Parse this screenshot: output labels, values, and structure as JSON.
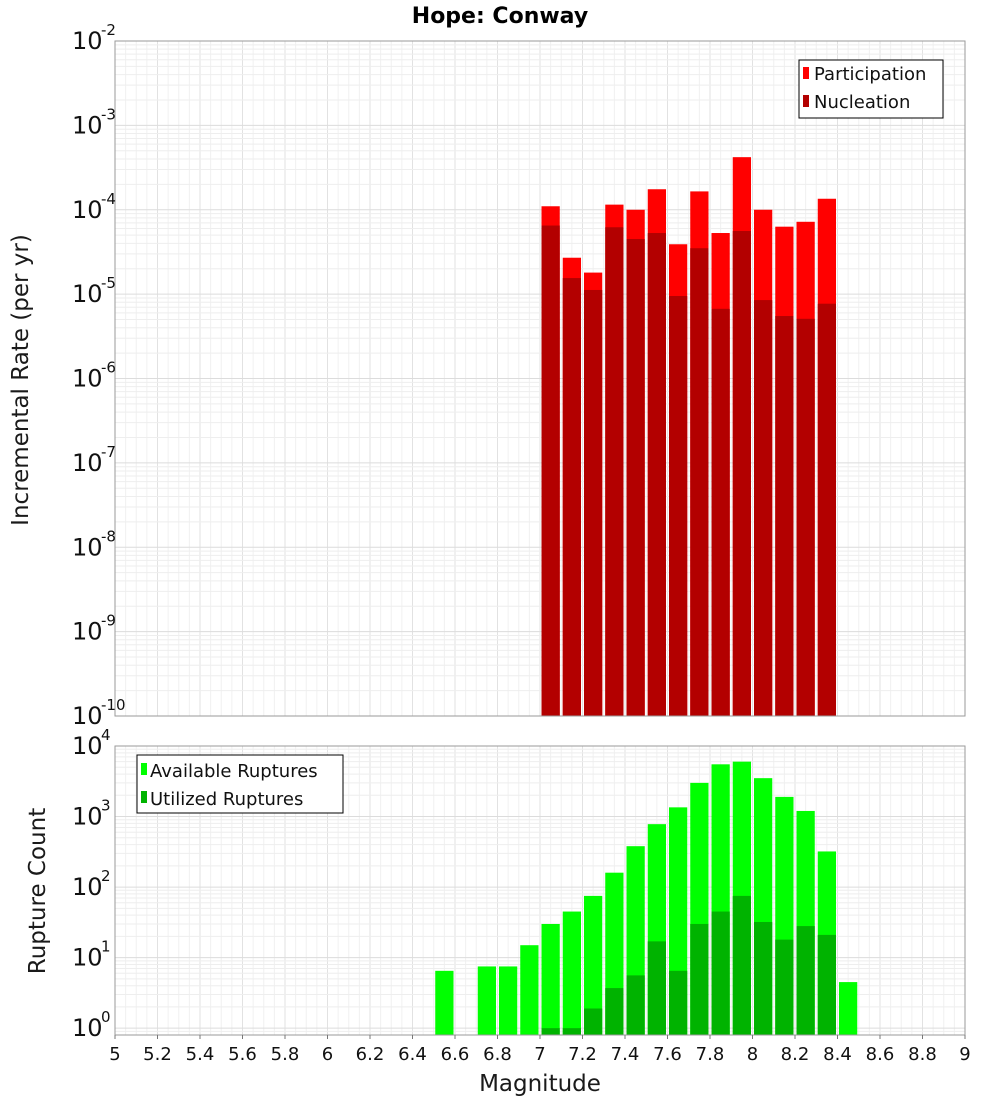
{
  "chart_data": [
    {
      "type": "bar",
      "title": "Hope: Conway",
      "xlabel": "",
      "ylabel": "Incremental Rate (per yr)",
      "yscale": "log",
      "ylim": [
        1e-10,
        0.01
      ],
      "xlim": [
        5,
        9
      ],
      "bin_width": 0.1,
      "grid": true,
      "legend_position": "top-right",
      "y_ticks": [
        {
          "base": "10",
          "exp": "-10"
        },
        {
          "base": "10",
          "exp": "-9"
        },
        {
          "base": "10",
          "exp": "-8"
        },
        {
          "base": "10",
          "exp": "-7"
        },
        {
          "base": "10",
          "exp": "-6"
        },
        {
          "base": "10",
          "exp": "-5"
        },
        {
          "base": "10",
          "exp": "-4"
        },
        {
          "base": "10",
          "exp": "-3"
        },
        {
          "base": "10",
          "exp": "-2"
        }
      ],
      "x": [
        7.05,
        7.15,
        7.25,
        7.35,
        7.45,
        7.55,
        7.65,
        7.75,
        7.85,
        7.95,
        8.05,
        8.15,
        8.25,
        8.35
      ],
      "series": [
        {
          "name": "Participation",
          "color": "#ff0000",
          "values": [
            0.00011,
            2.7e-05,
            1.8e-05,
            0.000115,
            0.0001,
            0.000175,
            3.9e-05,
            0.000165,
            5.3e-05,
            0.00042,
            0.0001,
            6.3e-05,
            7.2e-05,
            0.000135
          ]
        },
        {
          "name": "Nucleation",
          "color": "#b30000",
          "values": [
            6.5e-05,
            1.55e-05,
            1.12e-05,
            6.2e-05,
            4.5e-05,
            5.3e-05,
            9.5e-06,
            3.5e-05,
            6.7e-06,
            5.6e-05,
            8.5e-06,
            5.5e-06,
            5.1e-06,
            7.7e-06
          ]
        }
      ]
    },
    {
      "type": "bar",
      "title": "",
      "xlabel": "Magnitude",
      "ylabel": "Rupture Count",
      "yscale": "log",
      "ylim": [
        0.8,
        10000
      ],
      "xlim": [
        5,
        9
      ],
      "bin_width": 0.1,
      "grid": true,
      "legend_position": "top-left",
      "x_ticks": [
        "5",
        "5.2",
        "5.4",
        "5.6",
        "5.8",
        "6",
        "6.2",
        "6.4",
        "6.6",
        "6.8",
        "7",
        "7.2",
        "7.4",
        "7.6",
        "7.8",
        "8",
        "8.2",
        "8.4",
        "8.6",
        "8.8",
        "9"
      ],
      "y_ticks": [
        {
          "base": "10",
          "exp": "0"
        },
        {
          "base": "10",
          "exp": "1"
        },
        {
          "base": "10",
          "exp": "2"
        },
        {
          "base": "10",
          "exp": "3"
        },
        {
          "base": "10",
          "exp": "4"
        }
      ],
      "x": [
        6.55,
        6.75,
        6.85,
        6.95,
        7.05,
        7.15,
        7.25,
        7.35,
        7.45,
        7.55,
        7.65,
        7.75,
        7.85,
        7.95,
        8.05,
        8.15,
        8.25,
        8.35,
        8.45
      ],
      "series": [
        {
          "name": "Available Ruptures",
          "color": "#00ff00",
          "values": [
            6.5,
            7.5,
            7.5,
            15,
            30,
            45,
            75,
            160,
            380,
            780,
            1350,
            3000,
            5500,
            6000,
            3500,
            1900,
            1200,
            320,
            4.5
          ]
        },
        {
          "name": "Utilized Ruptures",
          "color": "#00b300",
          "values": [
            null,
            null,
            null,
            null,
            1,
            1,
            1.9,
            3.7,
            5.6,
            17,
            6.5,
            30,
            45,
            75,
            32,
            18,
            28,
            21,
            null
          ]
        }
      ]
    }
  ]
}
